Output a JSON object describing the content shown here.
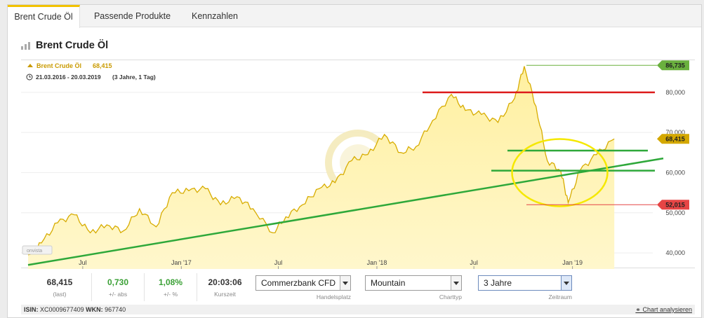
{
  "tabs": [
    {
      "label": "Brent Crude Öl",
      "active": true
    },
    {
      "label": "Passende Produkte",
      "active": false
    },
    {
      "label": "Kennzahlen",
      "active": false
    }
  ],
  "page_title": "Brent Crude Öl",
  "chart_header": {
    "instrument": "Brent Crude Öl",
    "last_value": "68,415",
    "range": "21.03.2016 - 20.03.2019",
    "range_note": "(3 Jahre, 1 Tag)"
  },
  "watermark": "onvista",
  "chart_data": {
    "type": "area",
    "x": [
      "2016-03-21",
      "2016-04-15",
      "2016-05-15",
      "2016-06-15",
      "2016-07-15",
      "2016-08-15",
      "2016-09-15",
      "2016-10-15",
      "2016-11-15",
      "2016-12-15",
      "2017-01-15",
      "2017-02-15",
      "2017-03-15",
      "2017-04-15",
      "2017-05-15",
      "2017-06-21",
      "2017-07-15",
      "2017-08-15",
      "2017-09-15",
      "2017-10-15",
      "2017-11-15",
      "2017-12-15",
      "2018-01-15",
      "2018-02-15",
      "2018-03-15",
      "2018-04-15",
      "2018-05-20",
      "2018-06-15",
      "2018-07-15",
      "2018-08-15",
      "2018-09-15",
      "2018-10-03",
      "2018-10-25",
      "2018-11-15",
      "2018-12-10",
      "2018-12-24",
      "2019-01-15",
      "2019-02-15",
      "2019-03-20"
    ],
    "values": [
      39.5,
      42.5,
      47.5,
      49.5,
      45.0,
      47.0,
      45.5,
      51.0,
      46.5,
      55.0,
      55.5,
      56.0,
      52.0,
      54.0,
      51.0,
      45.0,
      49.0,
      52.0,
      56.0,
      57.5,
      63.0,
      64.5,
      69.5,
      65.0,
      66.5,
      73.0,
      79.5,
      75.5,
      74.5,
      72.5,
      78.5,
      86.5,
      76.5,
      63.0,
      60.5,
      52.5,
      60.5,
      64.5,
      68.4
    ],
    "ylim": [
      36,
      88
    ],
    "y_ticks": [
      "40,000",
      "50,000",
      "60,000",
      "70,000",
      "80,000"
    ],
    "x_ticks": [
      "Jul",
      "Jan '17",
      "Jul",
      "Jan '18",
      "Jul",
      "Jan '19"
    ],
    "price_markers": [
      {
        "label": "86,735",
        "value": 86.735,
        "color": "#6ab03e"
      },
      {
        "label": "68,415",
        "value": 68.415,
        "color": "#d4a800"
      },
      {
        "label": "52,015",
        "value": 52.015,
        "color": "#e64545"
      }
    ],
    "annotations": {
      "red_resistance": 80.0,
      "green_level_upper": 65.5,
      "green_level_lower": 60.5,
      "trendline": {
        "from": [
          "2016-03-21",
          37.0
        ],
        "to": [
          "2019-04-15",
          62.5
        ]
      },
      "ellipse_center": [
        "2018-12-24",
        60.0
      ],
      "colors": {
        "area_stroke": "#d7ac00",
        "area_fill_top": "#fff0a0",
        "trendline": "#2ea83a",
        "red": "#dd1c1c",
        "ellipse": "#f5e800"
      }
    }
  },
  "stats": [
    {
      "value": "68,415",
      "label": "(last)",
      "green": false
    },
    {
      "value": "0,730",
      "label": "+/- abs",
      "green": true
    },
    {
      "value": "1,08%",
      "label": "+/- %",
      "green": true
    },
    {
      "value": "20:03:06",
      "label": "Kurszeit",
      "green": false
    }
  ],
  "controls": {
    "handelsplatz": {
      "value": "Commerzbank CFD",
      "label": "Handelsplatz"
    },
    "charttyp": {
      "value": "Mountain",
      "label": "Charttyp"
    },
    "zeitraum": {
      "value": "3 Jahre",
      "label": "Zeitraum"
    }
  },
  "footer": {
    "isin_label": "ISIN:",
    "isin": "XC0009677409",
    "wkn_label": "WKN:",
    "wkn": "967740",
    "analyse_link": "Chart analysieren"
  }
}
